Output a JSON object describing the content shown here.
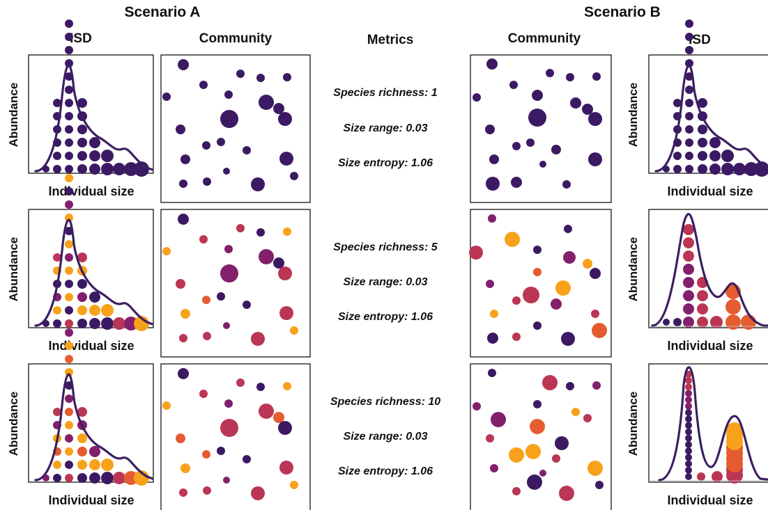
{
  "headers": {
    "scenario_a": "Scenario A",
    "scenario_b": "Scenario B",
    "isd_a": "ISD",
    "community_a": "Community",
    "metrics": "Metrics",
    "community_b": "Community",
    "isd_b": "ISD"
  },
  "axis_labels": {
    "y": "Abundance",
    "x": "Individual size"
  },
  "rows": [
    {
      "species_richness": "Species richness: 1",
      "size_range": "Size range: 0.03",
      "size_entropy": "Size entropy: 1.06"
    },
    {
      "species_richness": "Species richness: 5",
      "size_range": "Size range: 0.03",
      "size_entropy": "Size entropy: 1.06"
    },
    {
      "species_richness": "Species richness: 10",
      "size_range": "Size range: 0.03",
      "size_entropy": "Size entropy: 1.06"
    }
  ],
  "colors": {
    "outline": "#3b1f61",
    "dark_purple": "#3c1a63",
    "magenta": "#82206c",
    "crimson": "#bb3654",
    "orange_red": "#e55c30",
    "orange": "#f7a21a",
    "baseline": "#bbbbbb"
  }
}
